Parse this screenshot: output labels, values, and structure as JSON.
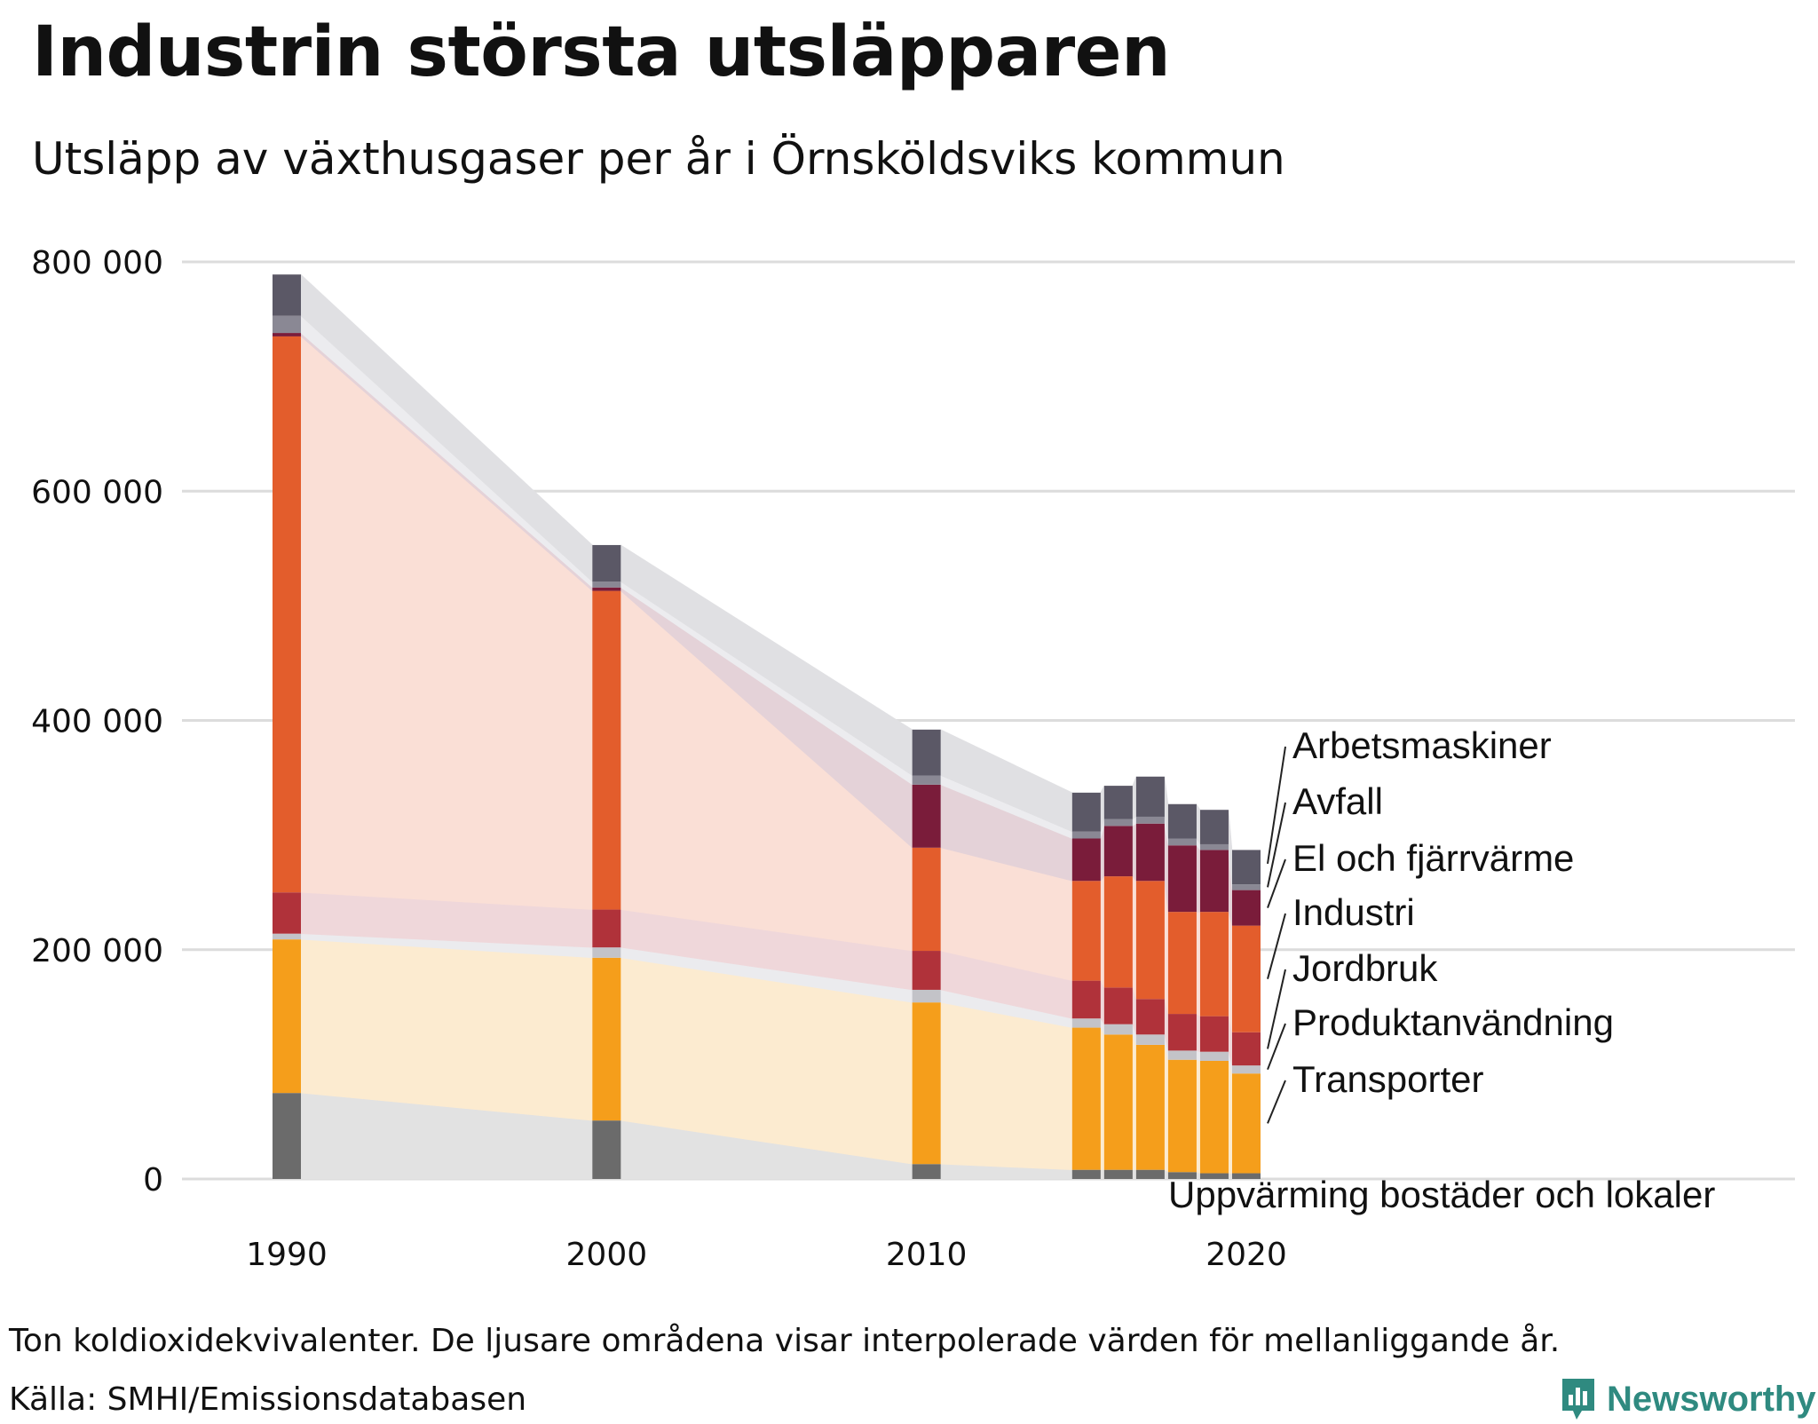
{
  "title": "Industrin största utsläpparen",
  "subtitle": "Utsläpp av växthusgaser per år i Örnsköldsviks kommun",
  "footnote": "Ton koldioxidekvivalenter. De ljusare områdena visar interpolerade värden för mellanliggande år.",
  "source": "Källa: SMHI/Emissionsdatabasen",
  "logo": {
    "name": "Newsworthy",
    "color": "#2f8a80"
  },
  "chart_data": {
    "type": "bar",
    "stacked": true,
    "title": "Industrin största utsläpparen",
    "subtitle": "Utsläpp av växthusgaser per år i Örnsköldsviks kommun",
    "ylim": [
      0,
      800000
    ],
    "y_ticks": [
      0,
      200000,
      400000,
      600000,
      800000
    ],
    "y_tick_labels": [
      "0",
      "200 000",
      "400 000",
      "600 000",
      "800 000"
    ],
    "x_ticks": [
      1990,
      2000,
      2010,
      2020
    ],
    "grid": true,
    "legend": "right, direct labels",
    "years": [
      1990,
      2000,
      2010,
      2015,
      2016,
      2017,
      2018,
      2019,
      2020
    ],
    "series": [
      {
        "name": "Uppvärming bostäder och lokaler",
        "color": "#6b6b6b",
        "light": "#e2e2e2",
        "values": [
          75000,
          51000,
          13000,
          8000,
          8000,
          8000,
          6000,
          5000,
          5000
        ]
      },
      {
        "name": "Transporter",
        "color": "#f59e1b",
        "light": "#fcebd0",
        "values": [
          134000,
          142000,
          141000,
          124000,
          118000,
          109000,
          98000,
          98000,
          87000
        ]
      },
      {
        "name": "Produktanvändning",
        "color": "#c3c3c8",
        "light": "#ebebee",
        "values": [
          5000,
          9000,
          11000,
          8000,
          9000,
          9000,
          8000,
          8000,
          7000
        ]
      },
      {
        "name": "Jordbruk",
        "color": "#b0323a",
        "light": "#efd7da",
        "values": [
          36000,
          33000,
          34000,
          33000,
          32000,
          31000,
          32000,
          31000,
          29000
        ]
      },
      {
        "name": "Industri",
        "color": "#e35d2c",
        "light": "#fadfd6",
        "values": [
          485000,
          278000,
          90000,
          87000,
          97000,
          103000,
          89000,
          91000,
          93000
        ]
      },
      {
        "name": "El och fjärrvärme",
        "color": "#7a1c3a",
        "light": "#e4d2d8",
        "values": [
          3000,
          3000,
          55000,
          37000,
          44000,
          50000,
          58000,
          54000,
          31000
        ]
      },
      {
        "name": "Avfall",
        "color": "#8a8894",
        "light": "#ececef",
        "values": [
          15000,
          5000,
          8000,
          6000,
          6000,
          6000,
          6000,
          5000,
          5000
        ]
      },
      {
        "name": "Arbetsmaskiner",
        "color": "#5b5866",
        "light": "#e0e0e3",
        "values": [
          36000,
          32000,
          40000,
          34000,
          29000,
          35000,
          30000,
          30000,
          30000
        ]
      }
    ]
  }
}
